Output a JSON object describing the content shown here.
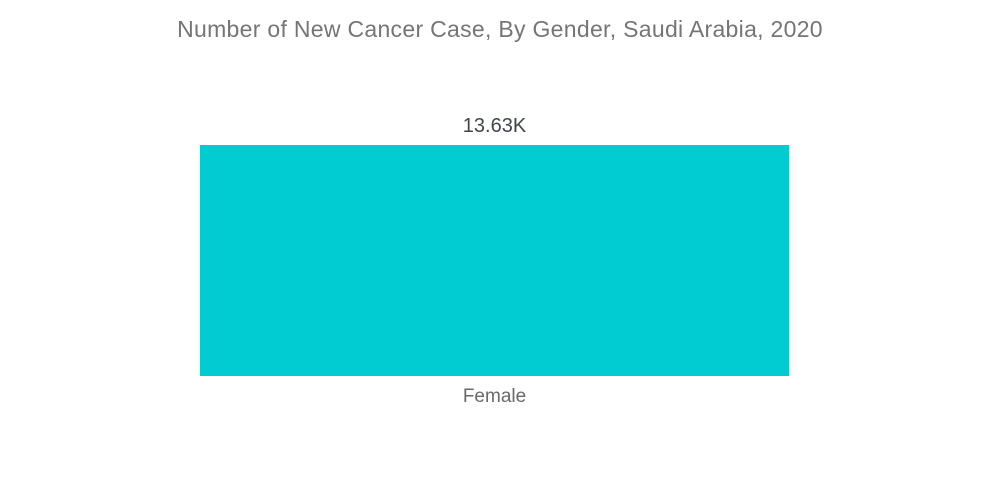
{
  "chart_data": {
    "type": "bar",
    "title": "Number of New Cancer Case, By Gender, Saudi Arabia, 2020",
    "categories": [
      "Female"
    ],
    "values": [
      13630
    ],
    "value_labels": [
      "13.63K"
    ],
    "xlabel": "",
    "ylabel": "",
    "orientation": "vertical",
    "grid": false,
    "legend": false,
    "axes_visible": false,
    "bar_color": "#00ccd2",
    "background_color": "#ffffff",
    "title_color": "#757577",
    "value_label_color": "#42454b",
    "category_label_color": "#68696b"
  }
}
